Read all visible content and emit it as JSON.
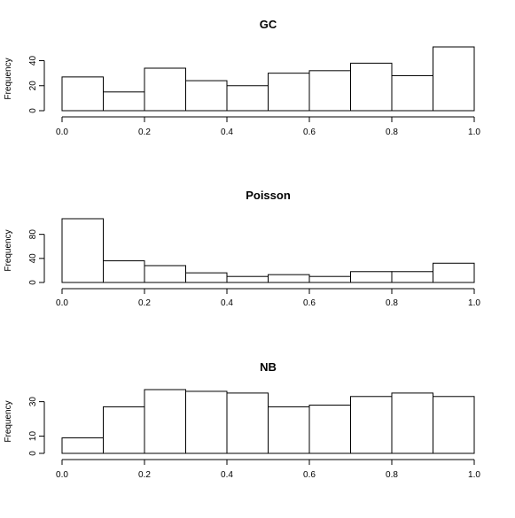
{
  "chart_data": [
    {
      "type": "bar",
      "title": "GC",
      "xlabel": "",
      "ylabel": "Frequency",
      "bin_edges": [
        0.0,
        0.1,
        0.2,
        0.3,
        0.4,
        0.5,
        0.6,
        0.7,
        0.8,
        0.9,
        1.0
      ],
      "values": [
        27,
        15,
        34,
        24,
        20,
        30,
        32,
        38,
        28,
        51
      ],
      "xlim": [
        0,
        1
      ],
      "ylim": [
        0,
        51
      ],
      "x_ticks": [
        0.0,
        0.2,
        0.4,
        0.6,
        0.8,
        1.0
      ],
      "x_tick_labels": [
        "0.0",
        "0.2",
        "0.4",
        "0.6",
        "0.8",
        "1.0"
      ],
      "y_ticks": [
        0,
        20,
        40
      ],
      "y_tick_labels": [
        "0",
        "20",
        "40"
      ],
      "grid": false
    },
    {
      "type": "bar",
      "title": "Poisson",
      "xlabel": "",
      "ylabel": "Frequency",
      "bin_edges": [
        0.0,
        0.1,
        0.2,
        0.3,
        0.4,
        0.5,
        0.6,
        0.7,
        0.8,
        0.9,
        1.0
      ],
      "values": [
        106,
        36,
        28,
        16,
        10,
        13,
        10,
        18,
        18,
        32
      ],
      "xlim": [
        0,
        1
      ],
      "ylim": [
        0,
        106
      ],
      "x_ticks": [
        0.0,
        0.2,
        0.4,
        0.6,
        0.8,
        1.0
      ],
      "x_tick_labels": [
        "0.0",
        "0.2",
        "0.4",
        "0.6",
        "0.8",
        "1.0"
      ],
      "y_ticks": [
        0,
        40,
        80
      ],
      "y_tick_labels": [
        "0",
        "40",
        "80"
      ],
      "grid": false
    },
    {
      "type": "bar",
      "title": "NB",
      "xlabel": "",
      "ylabel": "Frequency",
      "bin_edges": [
        0.0,
        0.1,
        0.2,
        0.3,
        0.4,
        0.5,
        0.6,
        0.7,
        0.8,
        0.9,
        1.0
      ],
      "values": [
        9,
        27,
        37,
        36,
        35,
        27,
        28,
        33,
        35,
        33
      ],
      "xlim": [
        0,
        1
      ],
      "ylim": [
        0,
        37
      ],
      "x_ticks": [
        0.0,
        0.2,
        0.4,
        0.6,
        0.8,
        1.0
      ],
      "x_tick_labels": [
        "0.0",
        "0.2",
        "0.4",
        "0.6",
        "0.8",
        "1.0"
      ],
      "y_ticks": [
        0,
        10,
        30
      ],
      "y_tick_labels": [
        "0",
        "10",
        "30"
      ],
      "grid": false
    }
  ]
}
